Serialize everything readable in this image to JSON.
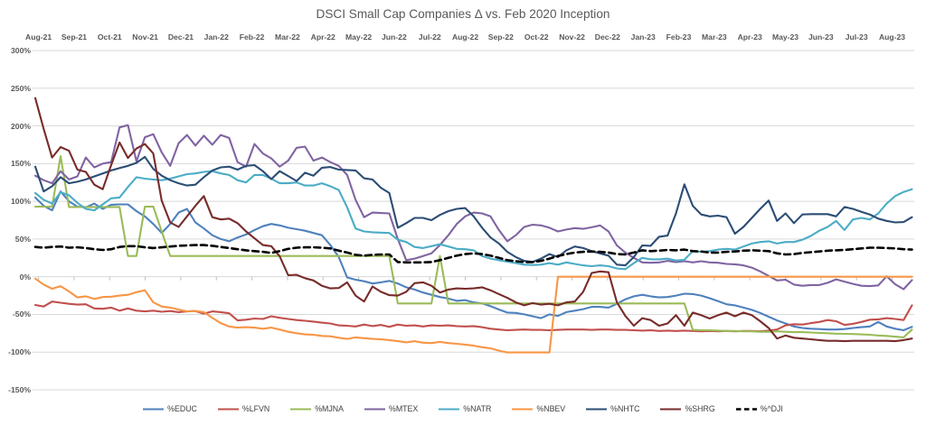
{
  "title": "DSCI Small Cap Companies Δ vs. Feb 2020 Inception",
  "chart_data": {
    "type": "line",
    "title": "DSCI Small Cap Companies Δ vs. Feb 2020 Inception",
    "xlabel": "",
    "ylabel": "",
    "x_tick_labels": [
      "Aug-21",
      "Sep-21",
      "Oct-21",
      "Nov-21",
      "Dec-21",
      "Jan-22",
      "Feb-22",
      "Mar-22",
      "Apr-22",
      "May-22",
      "Jun-22",
      "Jul-22",
      "Aug-22",
      "Sep-22",
      "Oct-22",
      "Nov-22",
      "Dec-22",
      "Jan-23",
      "Feb-23",
      "Mar-23",
      "Apr-23",
      "May-23",
      "Jun-23",
      "Jul-23",
      "Aug-23"
    ],
    "y_ticks": [
      300,
      250,
      200,
      150,
      100,
      50,
      0,
      -50,
      -100,
      -150
    ],
    "y_tick_suffix": "%",
    "ylim": [
      -150,
      300
    ],
    "grid": true,
    "grid_color": "#D9D9D9",
    "axis_tick_color": "#BFBFBF",
    "legend_position": "bottom",
    "background": "#FFFFFF",
    "points_per_series": 105,
    "x_unit": "weekly",
    "series": [
      {
        "name": "%EDUC",
        "color": "#4F81BD",
        "dash": false,
        "values": [
          105,
          94,
          88,
          113,
          100,
          93,
          92,
          97,
          90,
          95.5,
          96,
          96,
          87,
          80,
          70,
          58,
          70,
          85,
          90,
          72,
          64,
          55,
          50,
          47,
          52,
          56,
          62,
          67,
          70,
          68,
          65,
          63,
          61,
          58,
          55,
          42,
          26,
          -1,
          -4,
          -6,
          -9,
          -7.5,
          -5.5,
          -9,
          -14,
          -17,
          -21,
          -24,
          -27,
          -29,
          -32,
          -31,
          -34,
          -35.5,
          -39,
          -43.5,
          -47.5,
          -48,
          -50,
          -52.5,
          -55,
          -50,
          -52,
          -47,
          -45,
          -43,
          -40,
          -40,
          -41,
          -36,
          -30,
          -26,
          -24,
          -26,
          -27.5,
          -27,
          -25,
          -22.5,
          -23,
          -25,
          -28.5,
          -32.5,
          -36.5,
          -38,
          -41,
          -44,
          -48,
          -53,
          -58,
          -62,
          -66,
          -68,
          -69,
          -69.5,
          -70,
          -70,
          -69.5,
          -68,
          -67,
          -66,
          -60,
          -66,
          -69,
          -71,
          -66.5
        ]
      },
      {
        "name": "%LFVN",
        "color": "#C0504D",
        "dash": false,
        "values": [
          -37.5,
          -39.5,
          -33,
          -34.5,
          -36,
          -37,
          -36.5,
          -42,
          -42.5,
          -41,
          -45,
          -42,
          -45,
          -46,
          -45,
          -46.5,
          -45.5,
          -47,
          -46,
          -45.5,
          -49,
          -46,
          -47,
          -48.5,
          -58,
          -57,
          -55.5,
          -56,
          -52.5,
          -54.5,
          -56,
          -57.5,
          -58.5,
          -59.5,
          -61,
          -62,
          -64.5,
          -65,
          -66,
          -63.5,
          -65.5,
          -64,
          -66.5,
          -63.5,
          -65,
          -64.5,
          -66,
          -64.5,
          -65,
          -64.5,
          -65.5,
          -66,
          -65.5,
          -67,
          -69,
          -70,
          -71,
          -70.5,
          -70,
          -70.5,
          -70.5,
          -71,
          -70.5,
          -70,
          -70,
          -70,
          -70.5,
          -70,
          -70,
          -70.5,
          -70.5,
          -71,
          -71.5,
          -71,
          -72,
          -71.5,
          -72,
          -71.5,
          -72,
          -72.5,
          -72,
          -72.5,
          -72,
          -72.5,
          -72,
          -72,
          -72.5,
          -71.5,
          -70,
          -64.5,
          -63,
          -63.5,
          -61.5,
          -60,
          -57.5,
          -59,
          -64,
          -62.5,
          -60,
          -57,
          -56.5,
          -55,
          -56,
          -57.5,
          -38
        ]
      },
      {
        "name": "%MJNA",
        "color": "#9BBB59",
        "dash": false,
        "values": [
          93,
          93,
          93,
          160,
          92.5,
          92.5,
          92.5,
          92.5,
          92.5,
          92.5,
          92.5,
          27.5,
          27.5,
          93,
          93,
          60,
          27.5,
          27.5,
          27.5,
          27.5,
          27.5,
          27.5,
          27.5,
          27.5,
          27.5,
          27.5,
          27.5,
          27.5,
          27.5,
          27.5,
          27.5,
          27.5,
          27.5,
          27.5,
          27.5,
          27.5,
          27.5,
          27.5,
          27.5,
          27.5,
          27.5,
          27.5,
          27.5,
          -35.5,
          -35.5,
          -35.5,
          -35.5,
          -35.5,
          27.5,
          -35.5,
          -35.5,
          -35.5,
          -35.5,
          -35.5,
          -35.5,
          -35.5,
          -35.5,
          -35.5,
          -35.5,
          -35.5,
          -35.5,
          -35.5,
          -35.5,
          -35.5,
          -35.5,
          -35.5,
          -35.5,
          -35.5,
          -35.5,
          -35.5,
          -35.5,
          -35.5,
          -35.5,
          -35.5,
          -35.5,
          -35.5,
          -35.5,
          -35.5,
          -70.5,
          -71,
          -71,
          -71.5,
          -72,
          -72,
          -72.5,
          -72.5,
          -73,
          -73,
          -72.5,
          -73,
          -73.5,
          -73.5,
          -74,
          -74.5,
          -75,
          -75.5,
          -75.8,
          -76,
          -76.5,
          -77,
          -78,
          -78.5,
          -79.5,
          -80.5,
          -70
        ]
      },
      {
        "name": "%MTEX",
        "color": "#8064A2",
        "dash": false,
        "values": [
          134,
          128,
          124,
          140,
          129,
          133,
          158,
          145,
          150,
          152,
          198,
          201,
          153,
          185,
          189,
          165,
          147,
          177,
          188,
          174,
          187,
          175,
          188,
          184,
          152,
          146,
          176,
          163.5,
          157,
          146,
          154,
          171,
          172.5,
          154,
          158,
          152,
          147,
          135,
          102,
          79,
          85,
          84.5,
          84,
          50,
          22,
          24,
          27.5,
          31,
          42,
          55,
          70,
          80,
          85,
          84,
          80,
          62,
          47,
          55,
          66,
          69,
          68,
          65,
          60,
          62.5,
          64.5,
          63.5,
          65.5,
          68,
          60,
          41.5,
          32,
          25,
          19,
          18.5,
          19,
          21,
          19.5,
          20.5,
          19,
          20.5,
          19,
          18.5,
          17,
          16.5,
          15,
          12,
          7,
          1,
          -5,
          -4,
          -10.5,
          -12,
          -11,
          -11,
          -8,
          -3.5,
          -6.5,
          -9.5,
          -12,
          -12.5,
          -11.5,
          0.5,
          -10,
          -16.5,
          -4.5
        ]
      },
      {
        "name": "%NATR",
        "color": "#4BACC6",
        "dash": false,
        "values": [
          111,
          102,
          97,
          112,
          108,
          98,
          90,
          88,
          96,
          104,
          105,
          119,
          132,
          130,
          129,
          128,
          130,
          133,
          136,
          137,
          139,
          140,
          137,
          135,
          128,
          125,
          135,
          135,
          130,
          124,
          124,
          125,
          121,
          121,
          124,
          120,
          115,
          92,
          64,
          60,
          59,
          58.5,
          58,
          49,
          46,
          39.5,
          38,
          40.5,
          43,
          40,
          37,
          36.5,
          35,
          27.5,
          24,
          22,
          20,
          18,
          16,
          15.5,
          16,
          18,
          16,
          19,
          17,
          15,
          14,
          15,
          14,
          11,
          10,
          18,
          25,
          23,
          23,
          24,
          21.5,
          22.5,
          34,
          33,
          34,
          36,
          37,
          36,
          40,
          44,
          46,
          47,
          44,
          46,
          46,
          49,
          54,
          61,
          66,
          74,
          62,
          76,
          78,
          76,
          84,
          97,
          107,
          112.5,
          116
        ]
      },
      {
        "name": "%NBEV",
        "color": "#F79646",
        "dash": false,
        "values": [
          -2.5,
          -10.5,
          -16,
          -12.5,
          -19.5,
          -27.5,
          -26,
          -29.5,
          -27,
          -26.5,
          -25,
          -24,
          -20.5,
          -18,
          -34,
          -39.5,
          -41,
          -43.5,
          -46,
          -45.5,
          -47,
          -54.5,
          -61.5,
          -66,
          -67.5,
          -67,
          -67.5,
          -69,
          -67.5,
          -70,
          -73,
          -75,
          -76.5,
          -77,
          -78.5,
          -79,
          -81,
          -82.5,
          -80.5,
          -81.5,
          -82.5,
          -83,
          -84,
          -85.5,
          -87,
          -85.5,
          -87.5,
          -88,
          -86.5,
          -88,
          -89,
          -90,
          -91.5,
          -93.5,
          -95,
          -98,
          -100.4,
          -100.4,
          -100.4,
          -100.4,
          -100.4,
          -100.4,
          0,
          0,
          0,
          0,
          0,
          0,
          0,
          0,
          0,
          0,
          0,
          0,
          0,
          0,
          0,
          0,
          0,
          0,
          0,
          0,
          0,
          0,
          0,
          0,
          0,
          0,
          0,
          0,
          0,
          0,
          0,
          0,
          0,
          0,
          0,
          0,
          0,
          0,
          0,
          0,
          0,
          0,
          0
        ]
      },
      {
        "name": "%NHTC",
        "color": "#2C4D75",
        "dash": false,
        "values": [
          146,
          113,
          120,
          132,
          124,
          126,
          129,
          133,
          137,
          141,
          144,
          147,
          151,
          159,
          143,
          134,
          128,
          124,
          121,
          122,
          132,
          141,
          145,
          146,
          142,
          147,
          148,
          140,
          129.5,
          140,
          133.5,
          127,
          138,
          134,
          144.5,
          145.5,
          142,
          141.5,
          141,
          130.5,
          129,
          118,
          111,
          65,
          71,
          78,
          78,
          75,
          82,
          87,
          90,
          91,
          80,
          65,
          52,
          44,
          33,
          26,
          21,
          19.5,
          24,
          30,
          26,
          35,
          40,
          38,
          34,
          31,
          28,
          16,
          15,
          26,
          41.5,
          41,
          53,
          54.5,
          84,
          122.5,
          94,
          82.5,
          80,
          81,
          79,
          57,
          66,
          78,
          90,
          101,
          74,
          84,
          71,
          82.5,
          83,
          83,
          83,
          80,
          92.5,
          90,
          86,
          82.5,
          77,
          74,
          72,
          72.5,
          79
        ]
      },
      {
        "name": "%SHRG",
        "color": "#772C2A",
        "dash": false,
        "values": [
          237,
          196,
          158,
          172,
          167,
          142,
          139,
          122,
          116,
          148,
          178,
          157.5,
          170,
          176,
          163.5,
          101,
          72,
          66,
          80,
          94,
          107,
          79,
          76,
          77,
          71,
          60,
          51,
          42,
          40.5,
          27,
          2,
          2.5,
          -2,
          -5,
          -12,
          -15.5,
          -15,
          -7.5,
          -25,
          -33,
          -13,
          -20,
          -24.5,
          -25,
          -20,
          -8.5,
          -7.5,
          -12,
          -21,
          -17,
          -15.5,
          -16,
          -15.5,
          -14,
          -18,
          -23,
          -28,
          -34,
          -38,
          -35,
          -37,
          -36,
          -38,
          -34,
          -33,
          -20,
          5,
          7,
          6,
          -34,
          -52,
          -65,
          -55,
          -57.5,
          -65,
          -62,
          -51,
          -65,
          -47.5,
          -51,
          -55.5,
          -51,
          -47.5,
          -52.5,
          -47.5,
          -51,
          -59,
          -68,
          -82,
          -78,
          -81,
          -82,
          -83,
          -84,
          -85,
          -85,
          -85.5,
          -85,
          -85,
          -85,
          -85,
          -85,
          -85.5,
          -84,
          -82
        ]
      },
      {
        "name": "%^DJI",
        "color": "#000000",
        "dash": true,
        "values": [
          39.5,
          38.5,
          39.5,
          40,
          38.5,
          39,
          38,
          36.5,
          35.5,
          36.5,
          39.5,
          40.5,
          40.5,
          39,
          38,
          39,
          40,
          41,
          41.5,
          42,
          42,
          41,
          39.5,
          38,
          36.5,
          35,
          34,
          33,
          31.5,
          34,
          37,
          38.5,
          39,
          39,
          38.5,
          37.5,
          34.5,
          32,
          29,
          28,
          29,
          29.5,
          29.5,
          19.5,
          19,
          19,
          19,
          19.5,
          22,
          25,
          28,
          30,
          31,
          30,
          28,
          25,
          22,
          20.5,
          19.5,
          19.5,
          21,
          24,
          27.5,
          30,
          32,
          33,
          33.5,
          33,
          32,
          30,
          29.5,
          32,
          35,
          34,
          34.5,
          35.5,
          35,
          36,
          34,
          33.5,
          32,
          32,
          33,
          33.5,
          34.5,
          35,
          34.5,
          34,
          31,
          29.5,
          30,
          31.5,
          32.5,
          33.5,
          34.5,
          35,
          35.5,
          36.5,
          37.5,
          38.5,
          38.5,
          38,
          37.5,
          36.5,
          36
        ]
      }
    ]
  },
  "legend": {
    "items": [
      {
        "label": "%EDUC",
        "color": "#4F81BD",
        "dash": false
      },
      {
        "label": "%LFVN",
        "color": "#C0504D",
        "dash": false
      },
      {
        "label": "%MJNA",
        "color": "#9BBB59",
        "dash": false
      },
      {
        "label": "%MTEX",
        "color": "#8064A2",
        "dash": false
      },
      {
        "label": "%NATR",
        "color": "#4BACC6",
        "dash": false
      },
      {
        "label": "%NBEV",
        "color": "#F79646",
        "dash": false
      },
      {
        "label": "%NHTC",
        "color": "#2C4D75",
        "dash": false
      },
      {
        "label": "%SHRG",
        "color": "#772C2A",
        "dash": false
      },
      {
        "label": "%^DJI",
        "color": "#000000",
        "dash": true
      }
    ]
  }
}
